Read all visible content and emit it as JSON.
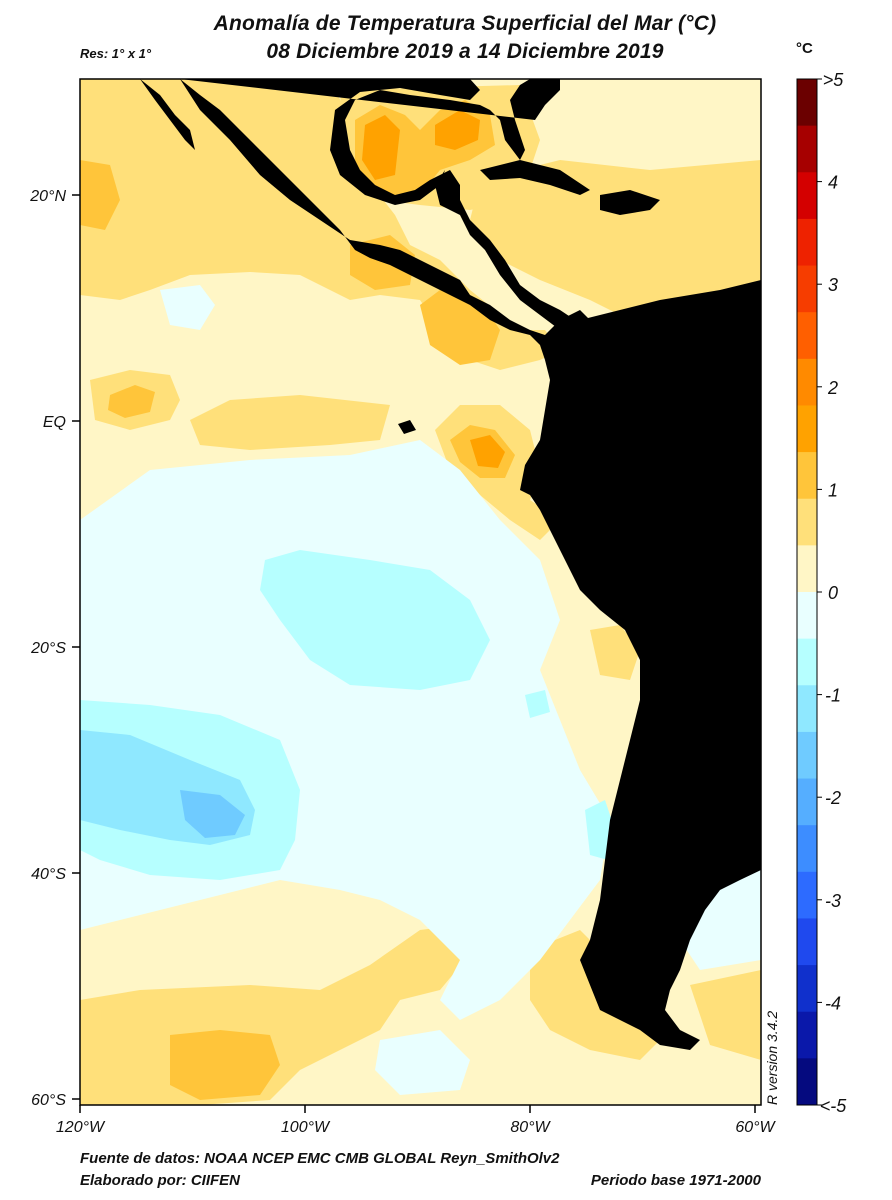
{
  "title_line1": "Anomalía de Temperatura Superficial del Mar (°C)",
  "title_line2": "08 Diciembre 2019 a 14 Diciembre 2019",
  "resolution": "Res: 1° x 1°",
  "footer": {
    "source": "Fuente de datos: NOAA NCEP EMC CMB GLOBAL Reyn_SmithOlv2",
    "author": "Elaborado por: CIIFEN",
    "period": "Periodo base 1971-2000"
  },
  "r_version": "R version 3.4.2",
  "colorbar": {
    "unit": "°C",
    "labels": [
      ">5",
      "4",
      "3",
      "2",
      "1",
      "0",
      "-1",
      "-2",
      "-3",
      "-4",
      "<-5"
    ],
    "colors": [
      "#6b0000",
      "#a60000",
      "#d40000",
      "#ee2200",
      "#f63d00",
      "#ff5f00",
      "#ff8a00",
      "#ffa200",
      "#ffc53a",
      "#ffe07a",
      "#fff6c6",
      "#e9ffff",
      "#b6ffff",
      "#8fe8ff",
      "#6fcbff",
      "#55aeff",
      "#3d8dff",
      "#2d6bff",
      "#1f49ee",
      "#1030cc",
      "#0a18aa",
      "#050a7f"
    ]
  },
  "map": {
    "x_ticks": [
      "120°W",
      "100°W",
      "80°W",
      "60°W"
    ],
    "y_ticks": [
      "20°N",
      "EQ",
      "20°S",
      "40°S",
      "60°S"
    ],
    "land_color": "#000000",
    "ocean_base_color": "#fff6c6"
  }
}
